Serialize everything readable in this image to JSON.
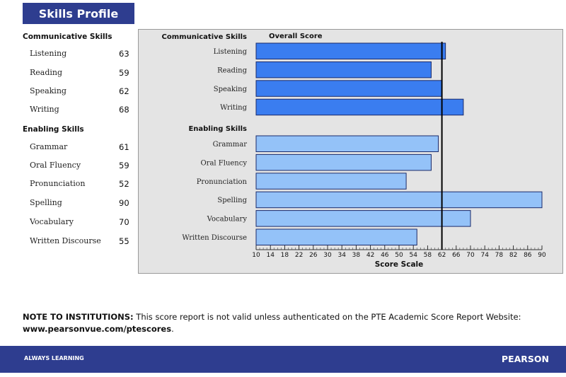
{
  "header": {
    "title": "Skills Profile"
  },
  "left_panel": {
    "communicative_heading": "Communicative Skills",
    "communicative": [
      {
        "label": "Listening",
        "score": "63"
      },
      {
        "label": "Reading",
        "score": "59"
      },
      {
        "label": "Speaking",
        "score": "62"
      },
      {
        "label": "Writing",
        "score": "68"
      }
    ],
    "enabling_heading": "Enabling Skills",
    "enabling": [
      {
        "label": "Grammar",
        "score": "61"
      },
      {
        "label": "Oral Fluency",
        "score": "59"
      },
      {
        "label": "Pronunciation",
        "score": "52"
      },
      {
        "label": "Spelling",
        "score": "90"
      },
      {
        "label": "Vocabulary",
        "score": "70"
      },
      {
        "label": "Written Discourse",
        "score": "55"
      }
    ]
  },
  "chart_data": {
    "type": "bar",
    "orientation": "horizontal",
    "title": "Overall Score",
    "xlabel": "Score Scale",
    "xlim": [
      10,
      90
    ],
    "xticks": [
      10,
      14,
      18,
      22,
      26,
      30,
      34,
      38,
      42,
      46,
      50,
      54,
      58,
      62,
      66,
      70,
      74,
      78,
      82,
      86,
      90
    ],
    "overall_score": 62,
    "groups": [
      {
        "heading": "Communicative Skills",
        "color": "#3a7df0",
        "categories": [
          "Listening",
          "Reading",
          "Speaking",
          "Writing"
        ],
        "values": [
          63,
          59,
          62,
          68
        ]
      },
      {
        "heading": "Enabling Skills",
        "color": "#94c2f8",
        "categories": [
          "Grammar",
          "Oral Fluency",
          "Pronunciation",
          "Spelling",
          "Vocabulary",
          "Written Discourse"
        ],
        "values": [
          61,
          59,
          52,
          90,
          70,
          55
        ]
      }
    ]
  },
  "note": {
    "label": "NOTE TO INSTITUTIONS:",
    "text_before": " This score report is not valid unless authenticated on the PTE Academic Score Report Website: ",
    "link": "www.pearsonvue.com/ptescores",
    "text_after": "."
  },
  "footer": {
    "left": "ALWAYS LEARNING",
    "right": "PEARSON"
  }
}
